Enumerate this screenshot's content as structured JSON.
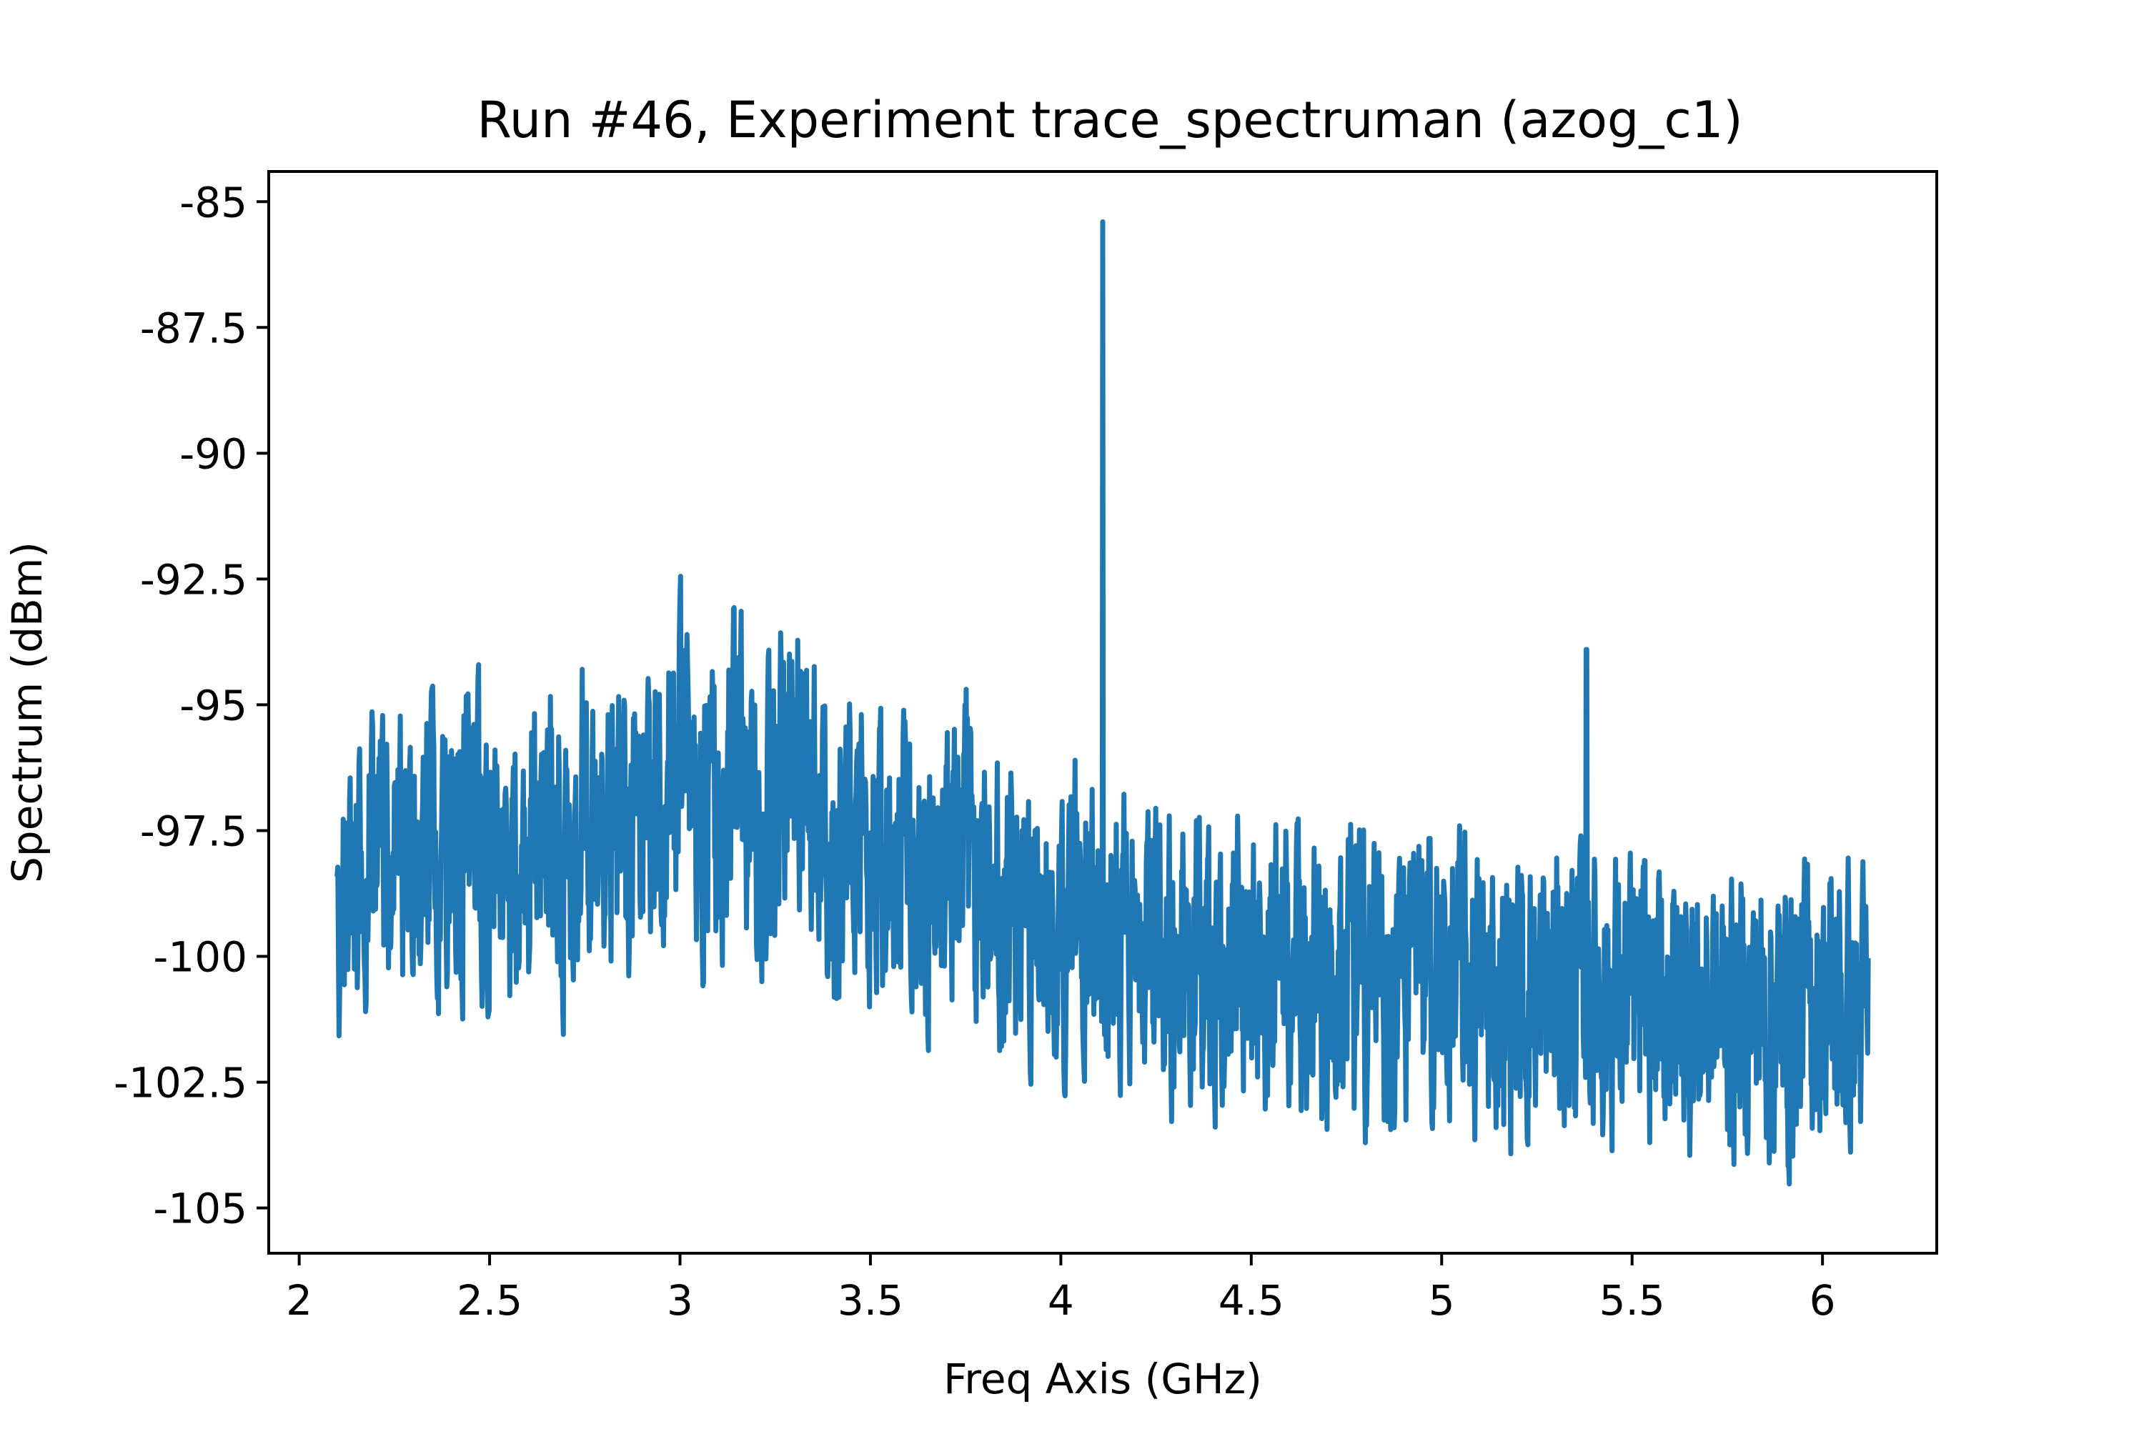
{
  "chart_data": {
    "type": "line",
    "title": "Run #46, Experiment trace_spectruman (azog_c1)",
    "xlabel": "Freq Axis (GHz)",
    "ylabel": "Spectrum (dBm)",
    "xlim": [
      1.92,
      6.3
    ],
    "ylim": [
      -105.9,
      -84.4
    ],
    "x_ticks": [
      2,
      2.5,
      3,
      3.5,
      4,
      4.5,
      5,
      5.5,
      6
    ],
    "x_tick_labels": [
      "2",
      "2.5",
      "3",
      "3.5",
      "4",
      "4.5",
      "5",
      "5.5",
      "6"
    ],
    "y_ticks": [
      -85,
      -87.5,
      -90,
      -92.5,
      -95,
      -97.5,
      -100,
      -102.5,
      -105
    ],
    "y_tick_labels": [
      "-85",
      "-87.5",
      "-90",
      "-92.5",
      "-95",
      "-97.5",
      "-100",
      "-102.5",
      "-105"
    ],
    "grid": false,
    "legend": "none",
    "series": [
      {
        "color": "#1f77b4",
        "x_range": [
          2.1,
          6.12
        ],
        "description_points": [
          {
            "x": 2.1,
            "y": -99.0
          },
          {
            "x": 2.15,
            "y": -98.5
          },
          {
            "x": 2.2,
            "y": -98.2
          },
          {
            "x": 2.25,
            "y": -98.3
          },
          {
            "x": 2.3,
            "y": -98.0
          },
          {
            "x": 2.35,
            "y": -98.0
          },
          {
            "x": 2.4,
            "y": -98.2
          },
          {
            "x": 2.45,
            "y": -97.2
          },
          {
            "x": 2.5,
            "y": -98.0
          },
          {
            "x": 2.55,
            "y": -98.4
          },
          {
            "x": 2.6,
            "y": -97.8
          },
          {
            "x": 2.65,
            "y": -96.8
          },
          {
            "x": 2.7,
            "y": -98.0
          },
          {
            "x": 2.75,
            "y": -96.5
          },
          {
            "x": 2.8,
            "y": -97.5
          },
          {
            "x": 2.85,
            "y": -97.8
          },
          {
            "x": 2.9,
            "y": -96.4
          },
          {
            "x": 2.95,
            "y": -97.4
          },
          {
            "x": 3.0,
            "y": -96.2
          },
          {
            "x": 3.05,
            "y": -96.8
          },
          {
            "x": 3.1,
            "y": -97.8
          },
          {
            "x": 3.15,
            "y": -96.0
          },
          {
            "x": 3.2,
            "y": -97.6
          },
          {
            "x": 3.25,
            "y": -97.2
          },
          {
            "x": 3.3,
            "y": -95.8
          },
          {
            "x": 3.35,
            "y": -96.6
          },
          {
            "x": 3.4,
            "y": -98.2
          },
          {
            "x": 3.45,
            "y": -97.2
          },
          {
            "x": 3.5,
            "y": -98.5
          },
          {
            "x": 3.55,
            "y": -98.6
          },
          {
            "x": 3.6,
            "y": -98.0
          },
          {
            "x": 3.65,
            "y": -98.8
          },
          {
            "x": 3.7,
            "y": -97.6
          },
          {
            "x": 3.75,
            "y": -97.7
          },
          {
            "x": 3.8,
            "y": -99.2
          },
          {
            "x": 3.85,
            "y": -99.3
          },
          {
            "x": 3.9,
            "y": -99.6
          },
          {
            "x": 3.95,
            "y": -99.2
          },
          {
            "x": 4.0,
            "y": -99.4
          },
          {
            "x": 4.05,
            "y": -98.8
          },
          {
            "x": 4.1,
            "y": -99.0
          },
          {
            "x": 4.15,
            "y": -99.2
          },
          {
            "x": 4.2,
            "y": -100.3
          },
          {
            "x": 4.25,
            "y": -99.8
          },
          {
            "x": 4.3,
            "y": -99.9
          },
          {
            "x": 4.4,
            "y": -100.0
          },
          {
            "x": 4.5,
            "y": -100.2
          },
          {
            "x": 4.6,
            "y": -100.4
          },
          {
            "x": 4.7,
            "y": -100.3
          },
          {
            "x": 4.8,
            "y": -100.5
          },
          {
            "x": 4.9,
            "y": -100.6
          },
          {
            "x": 5.0,
            "y": -100.4
          },
          {
            "x": 5.1,
            "y": -100.7
          },
          {
            "x": 5.2,
            "y": -100.8
          },
          {
            "x": 5.3,
            "y": -100.7
          },
          {
            "x": 5.4,
            "y": -100.6
          },
          {
            "x": 5.5,
            "y": -101.0
          },
          {
            "x": 5.6,
            "y": -100.9
          },
          {
            "x": 5.7,
            "y": -101.1
          },
          {
            "x": 5.8,
            "y": -101.0
          },
          {
            "x": 5.9,
            "y": -101.2
          },
          {
            "x": 6.0,
            "y": -101.0
          },
          {
            "x": 6.12,
            "y": -101.2
          }
        ],
        "peaks": [
          {
            "x": 4.11,
            "y": -85.4
          },
          {
            "x": 5.38,
            "y": -93.9
          }
        ],
        "noise_amplitude_dB": 3.0
      }
    ]
  }
}
